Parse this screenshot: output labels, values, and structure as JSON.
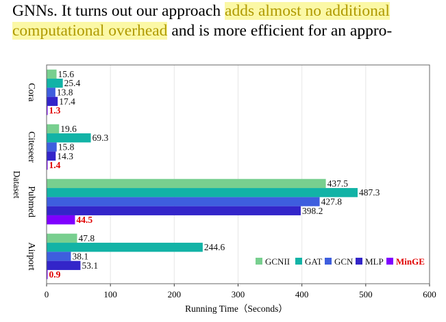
{
  "paragraph": {
    "line1_prefix": "GNNs.  It turns out our approach ",
    "line1_highlight": "adds almost no additional",
    "line2_highlight": "computational overhead",
    "line2_suffix": " and is more efficient for an appro-"
  },
  "colors": {
    "highlight_bg": "#fbf8a6",
    "highlight_text": "#a89300",
    "GCNII": "#78cf8f",
    "GAT": "#12b3a6",
    "GCN": "#3e5ede",
    "MLP": "#3325c9",
    "MinGE": "#7f00ff",
    "MinGE_label": "#e00000"
  },
  "chart_data": {
    "type": "bar",
    "orientation": "horizontal",
    "categories": [
      "Cora",
      "Citeseer",
      "Pubmed",
      "Airport"
    ],
    "series": [
      {
        "name": "GCNII",
        "values": [
          15.6,
          19.6,
          437.5,
          47.8
        ]
      },
      {
        "name": "GAT",
        "values": [
          25.4,
          69.3,
          487.3,
          244.6
        ]
      },
      {
        "name": "GCN",
        "values": [
          13.8,
          15.8,
          427.8,
          38.1
        ]
      },
      {
        "name": "MLP",
        "values": [
          17.4,
          14.3,
          398.2,
          53.1
        ]
      },
      {
        "name": "MinGE",
        "values": [
          1.3,
          1.4,
          44.5,
          0.9
        ]
      }
    ],
    "xlabel": "Running Time（Seconds）",
    "ylabel": "Dataset",
    "xlim": [
      0,
      600
    ],
    "xticks": [
      0,
      100,
      200,
      300,
      400,
      500,
      600
    ],
    "grid": "vertical",
    "legend": "bottom-right"
  }
}
